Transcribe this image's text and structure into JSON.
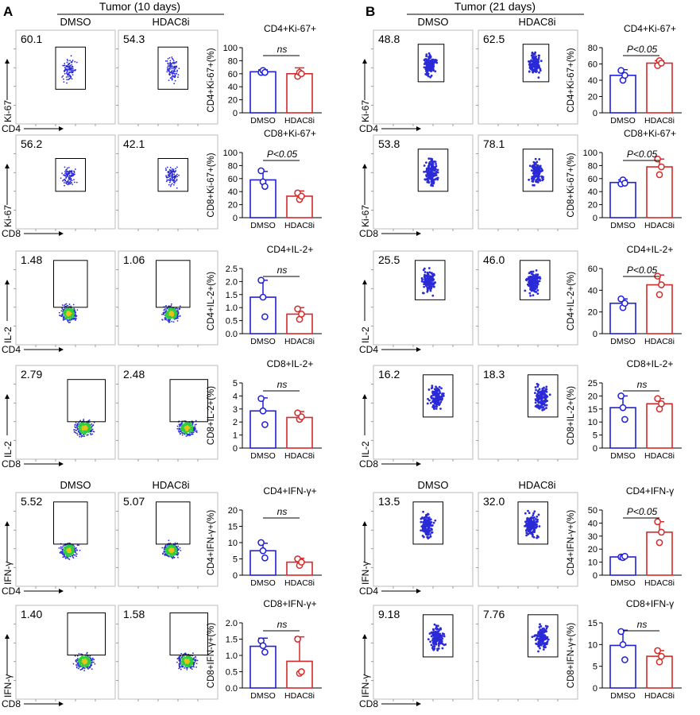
{
  "panels": [
    {
      "letter": "A",
      "title": "Tumor (10 days)",
      "group1": "DMSO",
      "group2": "HDAC8i"
    },
    {
      "letter": "B",
      "title": "Tumor (21 days)",
      "group1": "DMSO",
      "group2": "HDAC8i"
    }
  ],
  "colors": {
    "dmso": "#1f1fdc",
    "hdac8i": "#d42a2a",
    "dot_dense": "#2ecc40",
    "dot_sparse": "#2a2ad8"
  },
  "chart_data": [
    {
      "type": "bar",
      "panel": "A",
      "row": 1,
      "title": "CD4+Ki-67+",
      "ylabel": "CD4+Ki-67+(%)",
      "flow_x": "CD4",
      "flow_y": "Ki-67",
      "gate_pct": [
        "60.1",
        "54.3"
      ],
      "significance": "ns",
      "categories": [
        "DMSO",
        "HDAC8i"
      ],
      "values": [
        63,
        60
      ],
      "errors": [
        3,
        9
      ],
      "points": [
        [
          62,
          65,
          62
        ],
        [
          56,
          62,
          60
        ]
      ],
      "ylim": [
        0,
        100
      ],
      "yticks": [
        0,
        20,
        40,
        60,
        80,
        100
      ]
    },
    {
      "type": "bar",
      "panel": "A",
      "row": 2,
      "title": "CD8+Ki-67+",
      "ylabel": "CD8+Ki-67+(%)",
      "flow_x": "CD8",
      "flow_y": "Ki-67",
      "gate_pct": [
        "56.2",
        "42.1"
      ],
      "significance": "P<0.05",
      "categories": [
        "DMSO",
        "HDAC8i"
      ],
      "values": [
        58,
        33
      ],
      "errors": [
        13,
        8
      ],
      "points": [
        [
          72,
          55,
          48
        ],
        [
          38,
          28,
          33
        ]
      ],
      "ylim": [
        0,
        100
      ],
      "yticks": [
        0,
        20,
        40,
        60,
        80,
        100
      ]
    },
    {
      "type": "bar",
      "panel": "A",
      "row": 3,
      "title": "CD4+IL-2+",
      "ylabel": "CD4+IL-2+(%)",
      "flow_x": "CD4",
      "flow_y": "IL-2",
      "gate_pct": [
        "1.48",
        "1.06"
      ],
      "significance": "ns",
      "categories": [
        "DMSO",
        "HDAC8i"
      ],
      "values": [
        1.4,
        0.75
      ],
      "errors": [
        0.65,
        0.25
      ],
      "points": [
        [
          2.05,
          1.4,
          0.65
        ],
        [
          0.95,
          0.55,
          0.75
        ]
      ],
      "ylim": [
        0,
        2.5
      ],
      "yticks": [
        0,
        0.5,
        1.0,
        1.5,
        2.0,
        2.5
      ]
    },
    {
      "type": "bar",
      "panel": "A",
      "row": 4,
      "title": "CD8+IL-2+",
      "ylabel": "CD8+IL-2+(%)",
      "flow_x": "CD8",
      "flow_y": "IL-2",
      "gate_pct": [
        "2.79",
        "2.48"
      ],
      "significance": "ns",
      "categories": [
        "DMSO",
        "HDAC8i"
      ],
      "values": [
        2.85,
        2.35
      ],
      "errors": [
        1.0,
        0.45
      ],
      "points": [
        [
          3.8,
          2.85,
          1.8
        ],
        [
          2.7,
          2.2,
          2.4
        ]
      ],
      "ylim": [
        0,
        5
      ],
      "yticks": [
        0,
        1,
        2,
        3,
        4,
        5
      ]
    },
    {
      "type": "bar",
      "panel": "A",
      "row": 5,
      "title": "CD4+IFN-γ+",
      "ylabel": "CD4+IFN-γ+(%)",
      "flow_x": "CD4",
      "flow_y": "IFN-γ",
      "gate_pct": [
        "5.52",
        "5.07"
      ],
      "significance": "ns",
      "categories": [
        "DMSO",
        "HDAC8i"
      ],
      "values": [
        7.5,
        4.0
      ],
      "errors": [
        2.3,
        1.2
      ],
      "points": [
        [
          10,
          7.5,
          5.3
        ],
        [
          5,
          3,
          4
        ]
      ],
      "ylim": [
        0,
        20
      ],
      "yticks": [
        0,
        5,
        10,
        15,
        20
      ]
    },
    {
      "type": "bar",
      "panel": "A",
      "row": 6,
      "title": "CD8+IFN-γ+",
      "ylabel": "CD8+IFN-γ+(%)",
      "flow_x": "CD8",
      "flow_y": "IFN-γ",
      "gate_pct": [
        "1.40",
        "1.58"
      ],
      "significance": "ns",
      "categories": [
        "DMSO",
        "HDAC8i"
      ],
      "values": [
        1.28,
        0.82
      ],
      "errors": [
        0.25,
        0.75
      ],
      "points": [
        [
          1.45,
          1.3,
          1.1
        ],
        [
          1.5,
          0.45,
          0.5
        ]
      ],
      "ylim": [
        0,
        2.0
      ],
      "yticks": [
        0,
        0.5,
        1.0,
        1.5,
        2.0
      ]
    },
    {
      "type": "bar",
      "panel": "B",
      "row": 1,
      "title": "CD4+Ki-67+",
      "ylabel": "CD4+Ki-67+(%)",
      "flow_x": "CD4",
      "flow_y": "Ki-67",
      "gate_pct": [
        "48.8",
        "62.5"
      ],
      "significance": "P<0.05",
      "categories": [
        "DMSO",
        "HDAC8i"
      ],
      "values": [
        46,
        61
      ],
      "errors": [
        7,
        3
      ],
      "points": [
        [
          52,
          40,
          46
        ],
        [
          58,
          64,
          61
        ]
      ],
      "ylim": [
        0,
        80
      ],
      "yticks": [
        0,
        20,
        40,
        60,
        80
      ]
    },
    {
      "type": "bar",
      "panel": "B",
      "row": 2,
      "title": "CD8+Ki-67+",
      "ylabel": "CD8+Ki-67+(%)",
      "flow_x": "CD8",
      "flow_y": "Ki-67",
      "gate_pct": [
        "53.8",
        "78.1"
      ],
      "significance": "P<0.05",
      "categories": [
        "DMSO",
        "HDAC8i"
      ],
      "values": [
        54,
        78
      ],
      "errors": [
        4,
        12
      ],
      "points": [
        [
          52,
          58,
          53
        ],
        [
          90,
          66,
          78
        ]
      ],
      "ylim": [
        0,
        100
      ],
      "yticks": [
        0,
        20,
        40,
        60,
        80,
        100
      ]
    },
    {
      "type": "bar",
      "panel": "B",
      "row": 3,
      "title": "CD4+IL-2+",
      "ylabel": "CD4+IL-2+(%)",
      "flow_x": "CD4",
      "flow_y": "IL-2",
      "gate_pct": [
        "25.5",
        "46.0"
      ],
      "significance": "P<0.05",
      "categories": [
        "DMSO",
        "HDAC8i"
      ],
      "values": [
        28,
        45
      ],
      "errors": [
        4,
        9
      ],
      "points": [
        [
          32,
          24,
          28
        ],
        [
          53,
          36,
          45
        ]
      ],
      "ylim": [
        0,
        60
      ],
      "yticks": [
        0,
        20,
        40,
        60
      ]
    },
    {
      "type": "bar",
      "panel": "B",
      "row": 4,
      "title": "CD8+IL-2+",
      "ylabel": "CD8+IL-2+(%)",
      "flow_x": "CD8",
      "flow_y": "IL-2",
      "gate_pct": [
        "16.2",
        "18.3"
      ],
      "significance": "ns",
      "categories": [
        "DMSO",
        "HDAC8i"
      ],
      "values": [
        15.5,
        17
      ],
      "errors": [
        4.5,
        2
      ],
      "points": [
        [
          20,
          15.5,
          11
        ],
        [
          19,
          15,
          17
        ]
      ],
      "ylim": [
        0,
        25
      ],
      "yticks": [
        0,
        5,
        10,
        15,
        20,
        25
      ]
    },
    {
      "type": "bar",
      "panel": "B",
      "row": 5,
      "title": "CD4+IFN-γ",
      "ylabel": "CD4+IFN-γ+(%)",
      "flow_x": "CD4",
      "flow_y": "IFN-γ",
      "gate_pct": [
        "13.5",
        "32.0"
      ],
      "significance": "P<0.05",
      "categories": [
        "DMSO",
        "HDAC8i"
      ],
      "values": [
        14,
        33
      ],
      "errors": [
        1,
        8
      ],
      "points": [
        [
          14,
          13.5,
          14.5
        ],
        [
          41,
          25,
          33
        ]
      ],
      "ylim": [
        0,
        50
      ],
      "yticks": [
        0,
        10,
        20,
        30,
        40,
        50
      ]
    },
    {
      "type": "bar",
      "panel": "B",
      "row": 6,
      "title": "CD8+IFN-γ",
      "ylabel": "CD8+IFN-γ+(%)",
      "flow_x": "CD8",
      "flow_y": "IFN-γ",
      "gate_pct": [
        "9.18",
        "7.76"
      ],
      "significance": "ns",
      "categories": [
        "DMSO",
        "HDAC8i"
      ],
      "values": [
        9.8,
        7.3
      ],
      "errors": [
        3.5,
        1.3
      ],
      "points": [
        [
          13,
          10,
          6.5
        ],
        [
          8.6,
          6,
          7.3
        ]
      ],
      "ylim": [
        0,
        15
      ],
      "yticks": [
        0,
        5,
        10,
        15
      ]
    }
  ]
}
